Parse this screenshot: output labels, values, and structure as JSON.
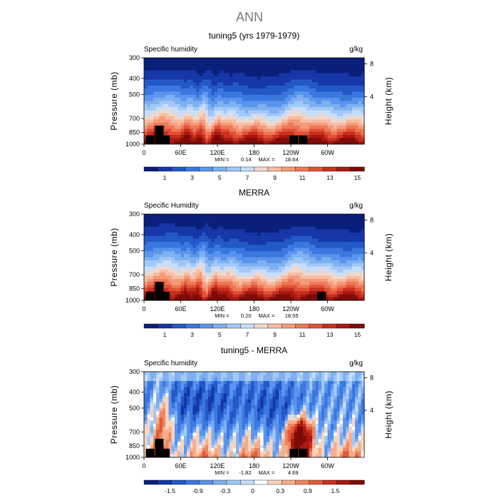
{
  "main_title": "ANN",
  "chart_data": [
    {
      "type": "heatmap",
      "title": "tuning5 (yrs 1979-1979)",
      "variable": "Specific humidity",
      "units": "g/kg",
      "ylabel": "Pressure (mb)",
      "y2label": "Height (km)",
      "xticks": [
        "0",
        "60E",
        "120E",
        "180",
        "120W",
        "60W"
      ],
      "yticks": [
        300,
        400,
        500,
        700,
        850,
        1000
      ],
      "y2ticks": [
        8,
        4
      ],
      "min_label": "MIN =",
      "min_value": "0.14",
      "max_label": "MAX =",
      "max_value": "18.64",
      "colorbar_labels": [
        "1",
        "3",
        "5",
        "7",
        "9",
        "11",
        "13",
        "15"
      ],
      "colorbar_colors": [
        "#0a1f7a",
        "#1537a8",
        "#2358c8",
        "#3a78e0",
        "#5a94ec",
        "#7eb0f2",
        "#a2c8f6",
        "#c8ddf8",
        "#efd8cc",
        "#f8bca2",
        "#f59a7a",
        "#ee7856",
        "#e15238",
        "#c9301f",
        "#a81912",
        "#7d0c08"
      ],
      "levels": [
        1,
        3,
        5,
        7,
        9,
        11,
        13,
        15
      ],
      "topography_longitudes": [
        10,
        25,
        35,
        245,
        260
      ]
    },
    {
      "type": "heatmap",
      "title": "MERRA",
      "variable": "Specific Humidity",
      "units": "g/kg",
      "ylabel": "Pressure (mb)",
      "y2label": "Height (km)",
      "xticks": [
        "0",
        "60E",
        "120E",
        "180",
        "120W",
        "60W"
      ],
      "yticks": [
        300,
        400,
        500,
        700,
        850,
        1000
      ],
      "y2ticks": [
        8,
        4
      ],
      "min_label": "MIN =",
      "min_value": "0.20",
      "max_label": "MAX =",
      "max_value": "18.55",
      "colorbar_labels": [
        "1",
        "3",
        "5",
        "7",
        "9",
        "11",
        "13",
        "15"
      ],
      "colorbar_colors": [
        "#0a1f7a",
        "#1537a8",
        "#2358c8",
        "#3a78e0",
        "#5a94ec",
        "#7eb0f2",
        "#a2c8f6",
        "#c8ddf8",
        "#efd8cc",
        "#f8bca2",
        "#f59a7a",
        "#ee7856",
        "#e15238",
        "#c9301f",
        "#a81912",
        "#7d0c08"
      ],
      "levels": [
        1,
        3,
        5,
        7,
        9,
        11,
        13,
        15
      ],
      "topography_longitudes": [
        10,
        25,
        35,
        290
      ]
    },
    {
      "type": "heatmap",
      "title": "tuning5 - MERRA",
      "variable": "Specific humidity",
      "units": "g/kg",
      "ylabel": "Pressure (mb)",
      "y2label": "Height (km)",
      "xticks": [
        "0",
        "60E",
        "120E",
        "180",
        "120W",
        "60W"
      ],
      "yticks": [
        300,
        400,
        500,
        700,
        850,
        1000
      ],
      "y2ticks": [
        8,
        4
      ],
      "min_label": "MIN =",
      "min_value": "-1.82",
      "max_label": "MAX =",
      "max_value": "4.69",
      "colorbar_labels": [
        "-1.5",
        "-0.9",
        "-0.3",
        "0",
        "0.3",
        "0.9",
        "1.5"
      ],
      "colorbar_colors": [
        "#0a1f7a",
        "#1537a8",
        "#2358c8",
        "#3a78e0",
        "#5a94ec",
        "#7eb0f2",
        "#a2c8f6",
        "#c8ddf8",
        "#ffffff",
        "#f8d4c0",
        "#f5ae8a",
        "#ee8660",
        "#e15a3a",
        "#c9301f",
        "#a81912",
        "#7d0c08"
      ],
      "levels": [
        -1.5,
        -0.9,
        -0.3,
        0,
        0.3,
        0.9,
        1.5
      ],
      "topography_longitudes": [
        10,
        25,
        35,
        245,
        260
      ]
    }
  ]
}
